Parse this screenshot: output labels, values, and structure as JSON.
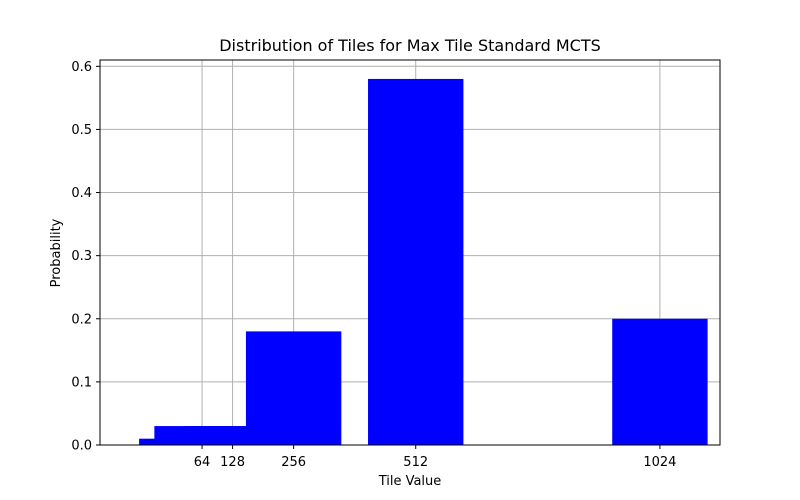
{
  "chart_data": {
    "type": "bar",
    "title": "Distribution of Tiles for Max Tile Standard MCTS",
    "xlabel": "Tile Value",
    "ylabel": "Probability",
    "xlim": [
      -150,
      1150
    ],
    "ylim": [
      0,
      0.61
    ],
    "xticks": [
      64,
      128,
      256,
      512,
      1024
    ],
    "xtick_labels": [
      "64",
      "128",
      "256",
      "512",
      "1024"
    ],
    "yticks": [
      0.0,
      0.1,
      0.2,
      0.3,
      0.4,
      0.5,
      0.6
    ],
    "ytick_labels": [
      "0.0",
      "0.1",
      "0.2",
      "0.3",
      "0.4",
      "0.5",
      "0.6"
    ],
    "bar_width": 200,
    "bars": [
      {
        "x": 32,
        "value": 0.01
      },
      {
        "x": 64,
        "value": 0.03
      },
      {
        "x": 128,
        "value": 0.03
      },
      {
        "x": 256,
        "value": 0.18
      },
      {
        "x": 512,
        "value": 0.58
      },
      {
        "x": 1024,
        "value": 0.2
      }
    ],
    "bar_color": "#0000ff",
    "grid": true
  }
}
